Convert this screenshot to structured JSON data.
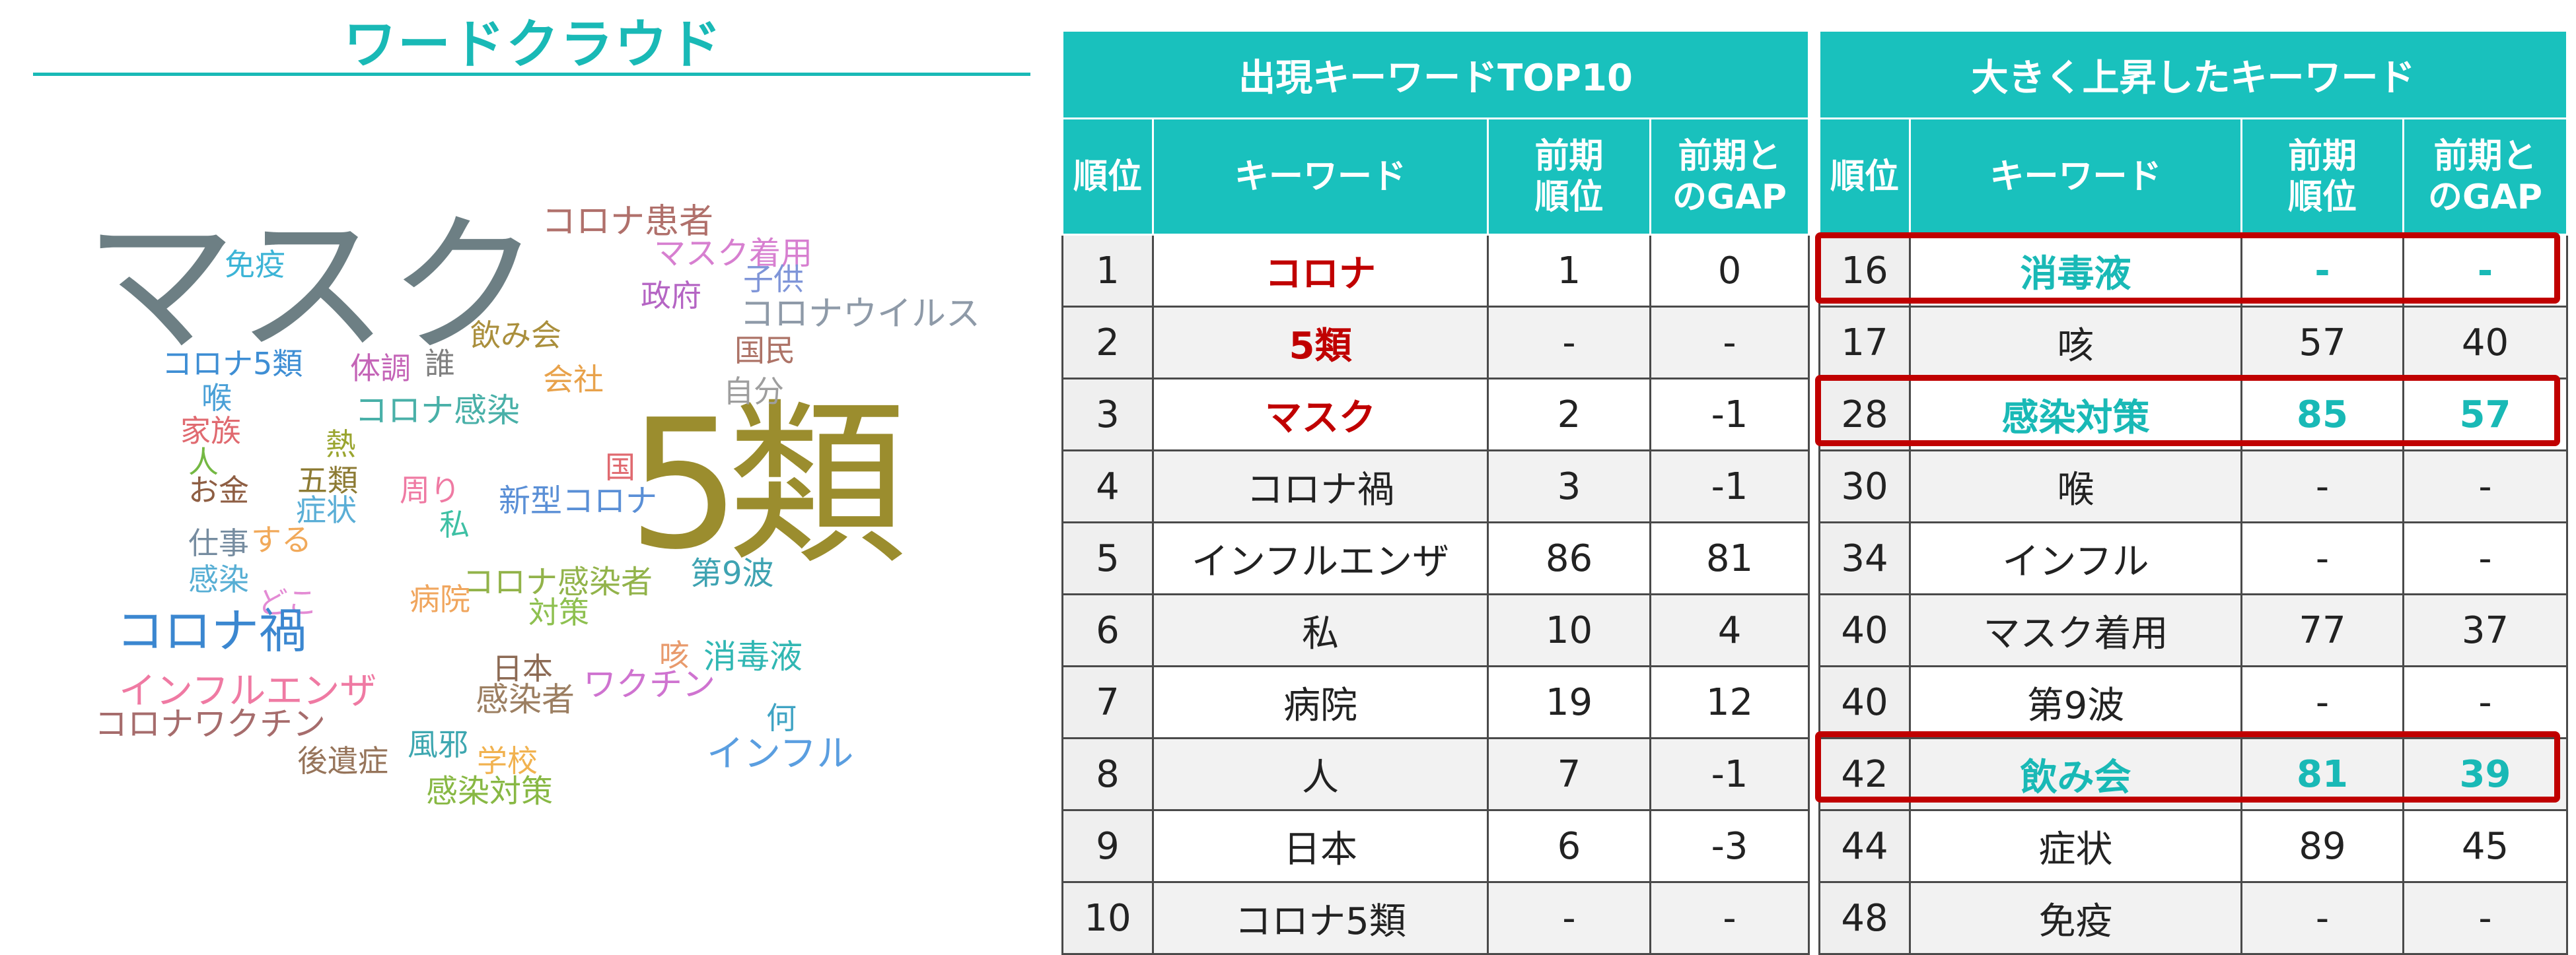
{
  "word_cloud": {
    "title": "ワードクラウド",
    "words": [
      {
        "text": "マスク",
        "color": "#6d7f84"
      },
      {
        "text": "5類",
        "color": "#9b8d2e"
      },
      {
        "text": "コロナ患者",
        "color": "#b0706b"
      },
      {
        "text": "マスク着用",
        "color": "#d77fd0"
      },
      {
        "text": "免疫",
        "color": "#3cb4d6"
      },
      {
        "text": "子供",
        "color": "#7f95d8"
      },
      {
        "text": "政府",
        "color": "#b565c4"
      },
      {
        "text": "コロナウイルス",
        "color": "#8e9aa8"
      },
      {
        "text": "飲み会",
        "color": "#aa8f3c"
      },
      {
        "text": "国民",
        "color": "#ad7367"
      },
      {
        "text": "コロナ5類",
        "color": "#3e8ed4"
      },
      {
        "text": "体調",
        "color": "#c464b7"
      },
      {
        "text": "誰",
        "color": "#808080"
      },
      {
        "text": "会社",
        "color": "#e8a24b"
      },
      {
        "text": "自分",
        "color": "#9e9e9e"
      },
      {
        "text": "喉",
        "color": "#4aa0d7"
      },
      {
        "text": "コロナ感染",
        "color": "#49b0a8"
      },
      {
        "text": "家族",
        "color": "#e06a70"
      },
      {
        "text": "熱",
        "color": "#9aa52f"
      },
      {
        "text": "人",
        "color": "#74b843"
      },
      {
        "text": "国",
        "color": "#e06a70"
      },
      {
        "text": "お金",
        "color": "#8e5e43"
      },
      {
        "text": "五類",
        "color": "#8d7b34"
      },
      {
        "text": "周り",
        "color": "#ef7aa3"
      },
      {
        "text": "新型コロナ",
        "color": "#5a8fd6"
      },
      {
        "text": "症状",
        "color": "#5aaed6"
      },
      {
        "text": "私",
        "color": "#3ec0a4"
      },
      {
        "text": "仕事",
        "color": "#768ca0"
      },
      {
        "text": "する",
        "color": "#f1a95a"
      },
      {
        "text": "感染",
        "color": "#57aed4"
      },
      {
        "text": "どこ",
        "color": "#e38bd4"
      },
      {
        "text": "第9波",
        "color": "#3ea3b2"
      },
      {
        "text": "コロナ感染者",
        "color": "#92b34a"
      },
      {
        "text": "病院",
        "color": "#f0a65e"
      },
      {
        "text": "対策",
        "color": "#8ec050"
      },
      {
        "text": "コロナ禍",
        "color": "#3b87d0"
      },
      {
        "text": "咳",
        "color": "#e89a6c"
      },
      {
        "text": "消毒液",
        "color": "#31b7b3"
      },
      {
        "text": "日本",
        "color": "#8c6a54"
      },
      {
        "text": "インフルエンザ",
        "color": "#ef7aa3"
      },
      {
        "text": "感染者",
        "color": "#9c7f62"
      },
      {
        "text": "ワクチン",
        "color": "#cf73d0"
      },
      {
        "text": "コロナワクチン",
        "color": "#a66c6c"
      },
      {
        "text": "何",
        "color": "#40a4c4"
      },
      {
        "text": "風邪",
        "color": "#3ea7b0"
      },
      {
        "text": "後遺症",
        "color": "#96745a"
      },
      {
        "text": "学校",
        "color": "#f1b24f"
      },
      {
        "text": "インフル",
        "color": "#5a9ee0"
      },
      {
        "text": "感染対策",
        "color": "#88b844"
      }
    ]
  },
  "table_top10": {
    "title": "出現キーワードTOP10",
    "headers": {
      "rank": "順位",
      "keyword": "キーワード",
      "prev_rank": "前期順位",
      "gap": "前期とのGAP"
    },
    "rows": [
      {
        "rank": "1",
        "keyword": "コロナ",
        "prev_rank": "1",
        "gap": "0"
      },
      {
        "rank": "2",
        "keyword": "5類",
        "prev_rank": "-",
        "gap": "-"
      },
      {
        "rank": "3",
        "keyword": "マスク",
        "prev_rank": "2",
        "gap": "-1"
      },
      {
        "rank": "4",
        "keyword": "コロナ禍",
        "prev_rank": "3",
        "gap": "-1"
      },
      {
        "rank": "5",
        "keyword": "インフルエンザ",
        "prev_rank": "86",
        "gap": "81"
      },
      {
        "rank": "6",
        "keyword": "私",
        "prev_rank": "10",
        "gap": "4"
      },
      {
        "rank": "7",
        "keyword": "病院",
        "prev_rank": "19",
        "gap": "12"
      },
      {
        "rank": "8",
        "keyword": "人",
        "prev_rank": "7",
        "gap": "-1"
      },
      {
        "rank": "9",
        "keyword": "日本",
        "prev_rank": "6",
        "gap": "-3"
      },
      {
        "rank": "10",
        "keyword": "コロナ5類",
        "prev_rank": "-",
        "gap": "-"
      }
    ]
  },
  "table_rising": {
    "title": "大きく上昇したキーワード",
    "headers": {
      "rank": "順位",
      "keyword": "キーワード",
      "prev_rank": "前期順位",
      "gap": "前期とのGAP"
    },
    "rows": [
      {
        "rank": "16",
        "keyword": "消毒液",
        "prev_rank": "-",
        "gap": "-"
      },
      {
        "rank": "17",
        "keyword": "咳",
        "prev_rank": "57",
        "gap": "40"
      },
      {
        "rank": "28",
        "keyword": "感染対策",
        "prev_rank": "85",
        "gap": "57"
      },
      {
        "rank": "30",
        "keyword": "喉",
        "prev_rank": "-",
        "gap": "-"
      },
      {
        "rank": "34",
        "keyword": "インフル",
        "prev_rank": "-",
        "gap": "-"
      },
      {
        "rank": "40",
        "keyword": "マスク着用",
        "prev_rank": "77",
        "gap": "37"
      },
      {
        "rank": "40",
        "keyword": "第9波",
        "prev_rank": "-",
        "gap": "-"
      },
      {
        "rank": "42",
        "keyword": "飲み会",
        "prev_rank": "81",
        "gap": "39"
      },
      {
        "rank": "44",
        "keyword": "症状",
        "prev_rank": "89",
        "gap": "45"
      },
      {
        "rank": "48",
        "keyword": "免疫",
        "prev_rank": "-",
        "gap": "-"
      }
    ]
  },
  "colors": {
    "accent": "#19c1bd",
    "highlight_red": "#c00000",
    "highlight_teal": "#19b9b6"
  }
}
